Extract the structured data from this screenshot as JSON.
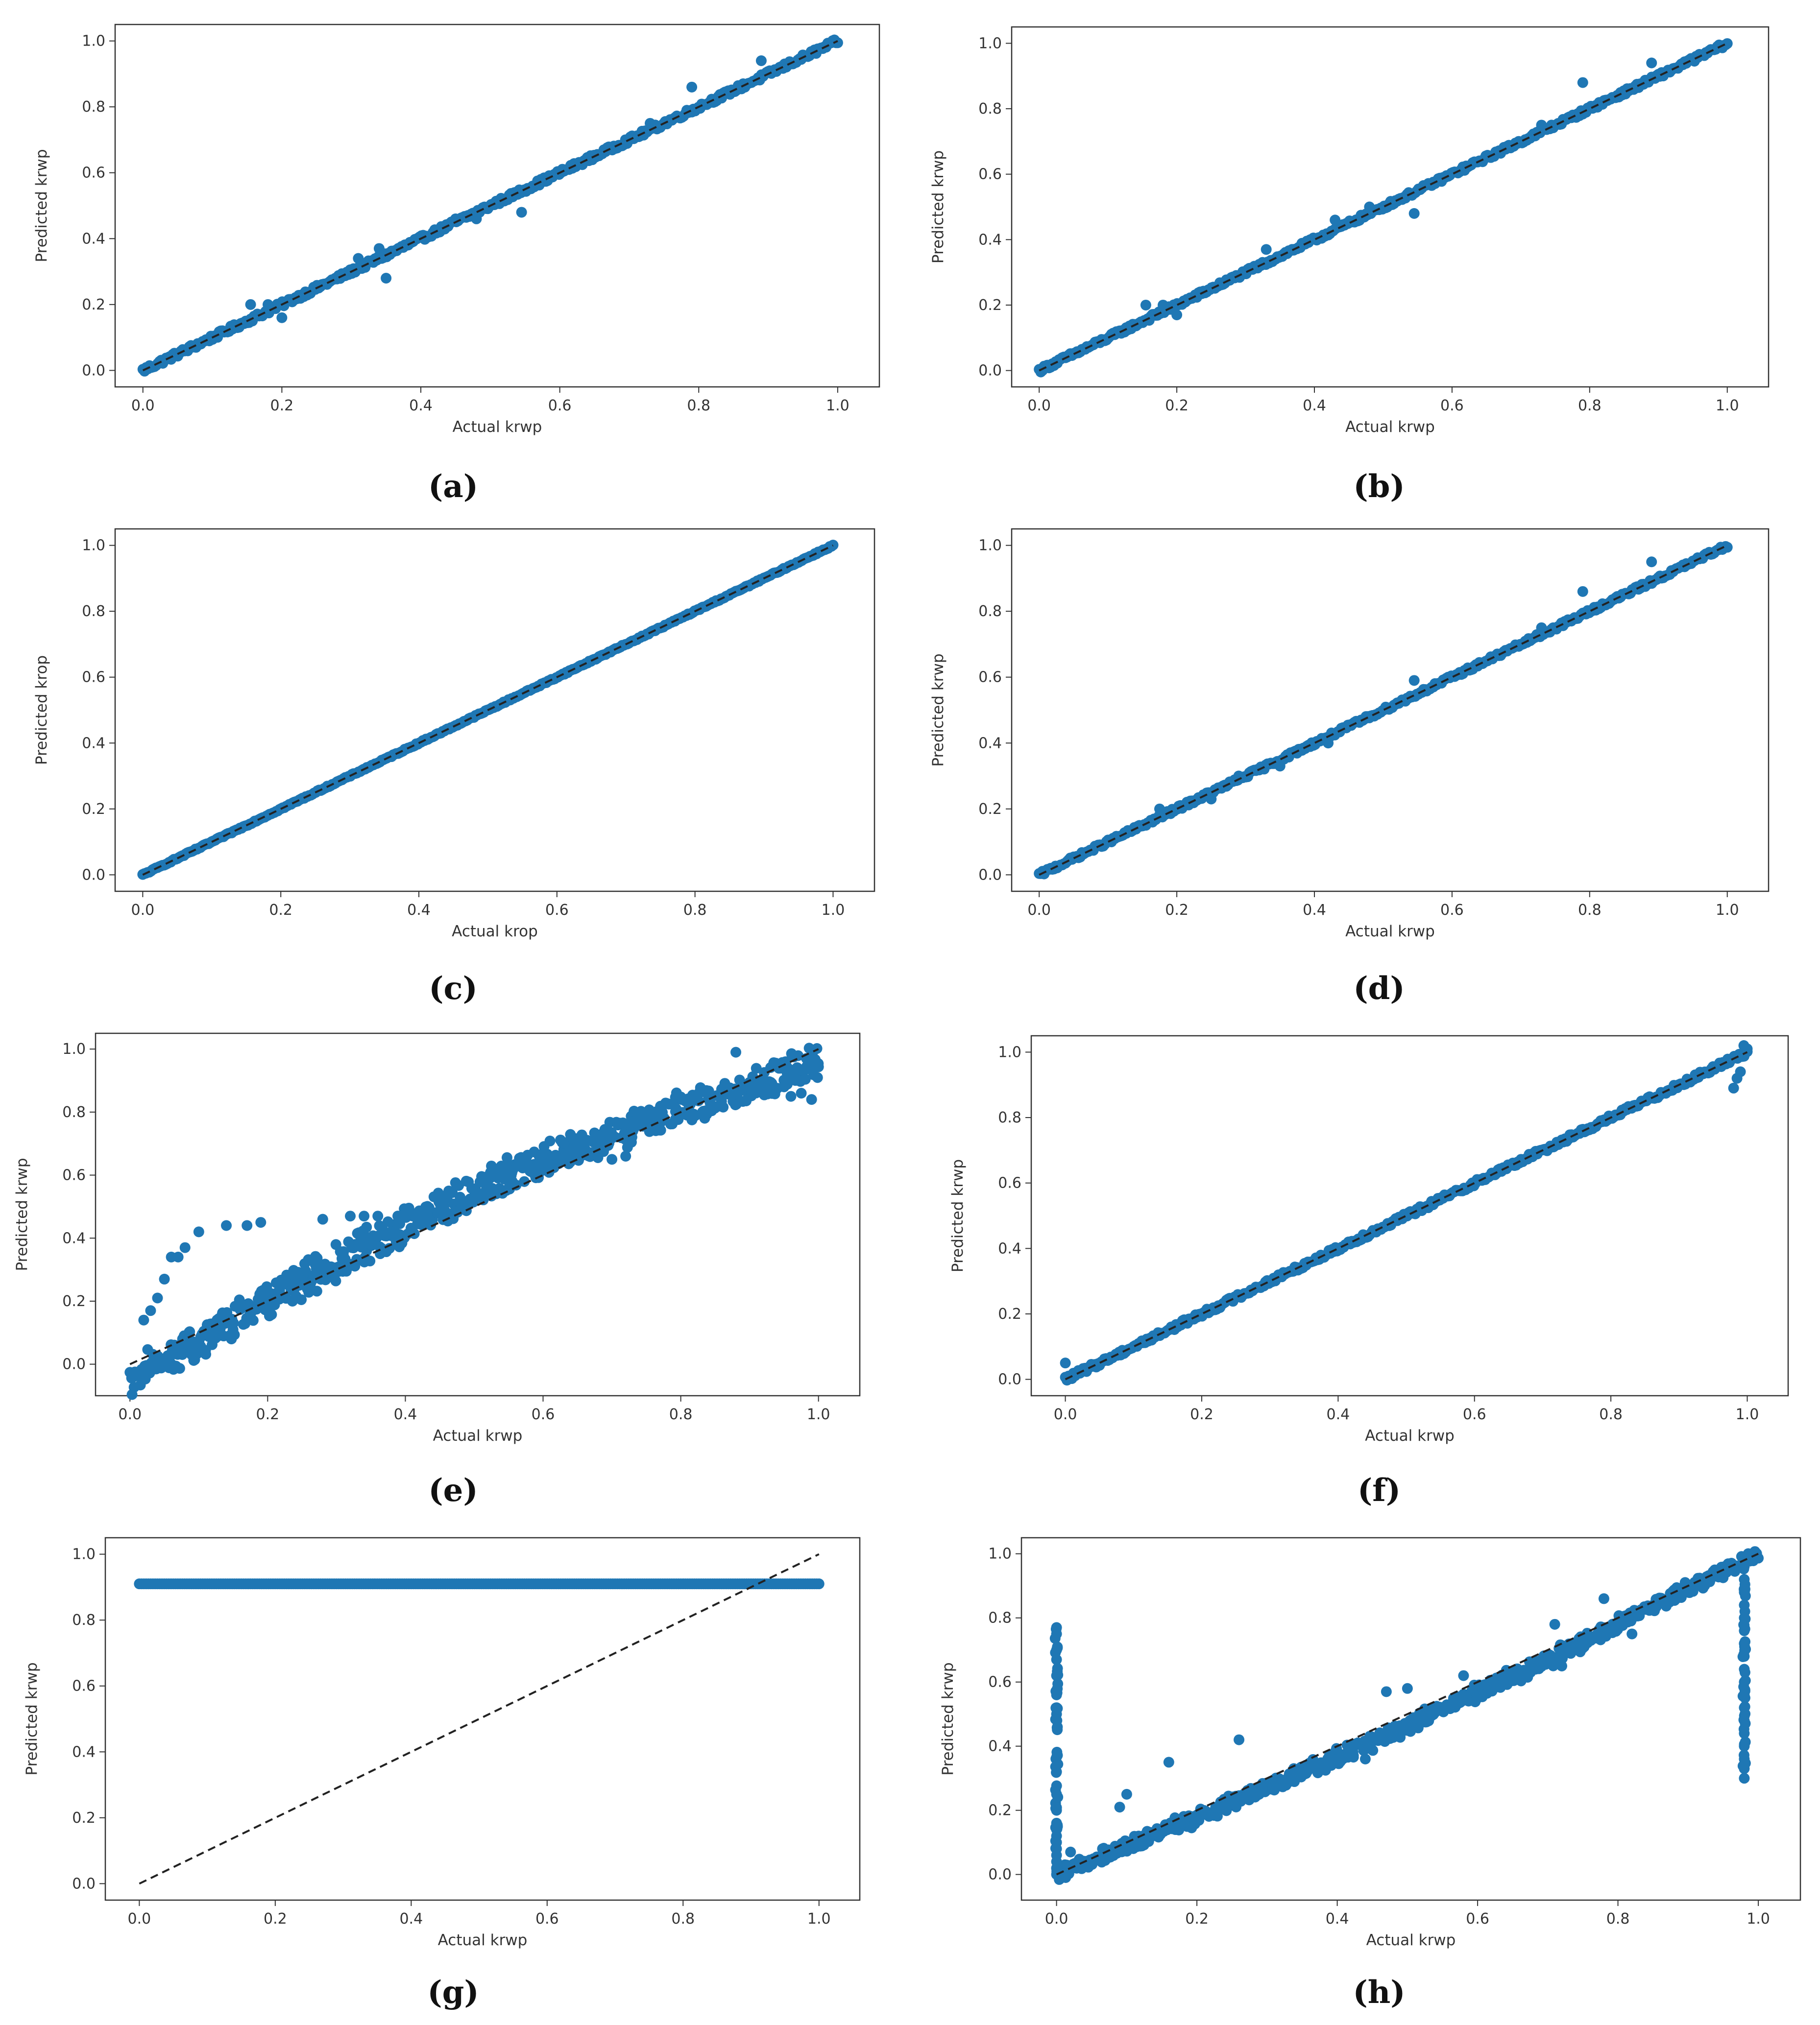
{
  "colors": {
    "marker": "#1f77b4",
    "diagonal": "#222222",
    "frame": "#333333"
  },
  "chart_data": [
    {
      "panel": "(a)",
      "type": "scatter",
      "xlabel": "Actual krwp",
      "ylabel": "Predicted krwp",
      "xlim": [
        -0.04,
        1.06
      ],
      "ylim": [
        -0.05,
        1.05
      ],
      "xticks": [
        "0.0",
        "0.2",
        "0.4",
        "0.6",
        "0.8",
        "1.0"
      ],
      "yticks": [
        "0.0",
        "0.2",
        "0.4",
        "0.6",
        "0.8",
        "1.0"
      ],
      "reference_line": [
        [
          0,
          0
        ],
        [
          1,
          1
        ]
      ],
      "trend": {
        "noise": 0.008
      },
      "outliers": [
        [
          0.79,
          0.86
        ],
        [
          0.89,
          0.94
        ],
        [
          0.545,
          0.48
        ],
        [
          0.155,
          0.2
        ],
        [
          0.18,
          0.2
        ],
        [
          0.2,
          0.16
        ],
        [
          0.31,
          0.34
        ],
        [
          0.34,
          0.37
        ],
        [
          0.35,
          0.28
        ],
        [
          0.45,
          0.46
        ],
        [
          0.48,
          0.46
        ],
        [
          0.5,
          0.5
        ],
        [
          0.73,
          0.75
        ]
      ]
    },
    {
      "panel": "(b)",
      "type": "scatter",
      "xlabel": "Actual krwp",
      "ylabel": "Predicted krwp",
      "xlim": [
        -0.04,
        1.06
      ],
      "ylim": [
        -0.05,
        1.05
      ],
      "xticks": [
        "0.0",
        "0.2",
        "0.4",
        "0.6",
        "0.8",
        "1.0"
      ],
      "yticks": [
        "0.0",
        "0.2",
        "0.4",
        "0.6",
        "0.8",
        "1.0"
      ],
      "reference_line": [
        [
          0,
          0
        ],
        [
          1,
          1
        ]
      ],
      "trend": {
        "noise": 0.007
      },
      "outliers": [
        [
          0.79,
          0.88
        ],
        [
          0.89,
          0.94
        ],
        [
          0.545,
          0.48
        ],
        [
          0.155,
          0.2
        ],
        [
          0.18,
          0.2
        ],
        [
          0.2,
          0.17
        ],
        [
          0.33,
          0.37
        ],
        [
          0.43,
          0.46
        ],
        [
          0.48,
          0.5
        ],
        [
          0.73,
          0.75
        ]
      ]
    },
    {
      "panel": "(c)",
      "type": "scatter",
      "xlabel": "Actual krop",
      "ylabel": "Predicted krop",
      "xlim": [
        -0.04,
        1.06
      ],
      "ylim": [
        -0.05,
        1.05
      ],
      "xticks": [
        "0.0",
        "0.2",
        "0.4",
        "0.6",
        "0.8",
        "1.0"
      ],
      "yticks": [
        "0.0",
        "0.2",
        "0.4",
        "0.6",
        "0.8",
        "1.0"
      ],
      "reference_line": [
        [
          0,
          0
        ],
        [
          1,
          1
        ]
      ],
      "trend": {
        "noise": 0.002
      },
      "outliers": []
    },
    {
      "panel": "(d)",
      "type": "scatter",
      "xlabel": "Actual krwp",
      "ylabel": "Predicted krwp",
      "xlim": [
        -0.04,
        1.06
      ],
      "ylim": [
        -0.05,
        1.05
      ],
      "xticks": [
        "0.0",
        "0.2",
        "0.4",
        "0.6",
        "0.8",
        "1.0"
      ],
      "yticks": [
        "0.0",
        "0.2",
        "0.4",
        "0.6",
        "0.8",
        "1.0"
      ],
      "reference_line": [
        [
          0,
          0
        ],
        [
          1,
          1
        ]
      ],
      "trend": {
        "noise": 0.006
      },
      "outliers": [
        [
          0.79,
          0.86
        ],
        [
          0.89,
          0.95
        ],
        [
          0.545,
          0.59
        ],
        [
          0.175,
          0.2
        ],
        [
          0.25,
          0.23
        ],
        [
          0.29,
          0.3
        ],
        [
          0.35,
          0.33
        ],
        [
          0.42,
          0.4
        ],
        [
          0.73,
          0.75
        ]
      ]
    },
    {
      "panel": "(e)",
      "type": "scatter",
      "xlabel": "Actual krwp",
      "ylabel": "Predicted krwp",
      "xlim": [
        -0.05,
        1.06
      ],
      "ylim": [
        -0.1,
        1.05
      ],
      "xticks": [
        "0.0",
        "0.2",
        "0.4",
        "0.6",
        "0.8",
        "1.0"
      ],
      "yticks": [
        "0.0",
        "0.2",
        "0.4",
        "0.6",
        "0.8",
        "1.0"
      ],
      "reference_line": [
        [
          0,
          0
        ],
        [
          1,
          1
        ]
      ],
      "trend": {
        "noise": 0.045
      },
      "outliers": [
        [
          0.02,
          0.14
        ],
        [
          0.03,
          0.17
        ],
        [
          0.04,
          0.21
        ],
        [
          0.05,
          0.27
        ],
        [
          0.06,
          0.34
        ],
        [
          0.07,
          0.34
        ],
        [
          0.08,
          0.37
        ],
        [
          0.1,
          0.42
        ],
        [
          0.14,
          0.44
        ],
        [
          0.17,
          0.44
        ],
        [
          0.19,
          0.45
        ],
        [
          0.28,
          0.46
        ],
        [
          0.32,
          0.47
        ],
        [
          0.34,
          0.47
        ],
        [
          0.36,
          0.47
        ],
        [
          0.88,
          0.99
        ],
        [
          0.96,
          0.85
        ],
        [
          0.99,
          0.84
        ],
        [
          0.975,
          0.86
        ],
        [
          0.95,
          0.88
        ],
        [
          0.72,
          0.66
        ],
        [
          0.7,
          0.65
        ]
      ]
    },
    {
      "panel": "(f)",
      "type": "scatter",
      "xlabel": "Actual krwp",
      "ylabel": "Predicted krwp",
      "xlim": [
        -0.05,
        1.06
      ],
      "ylim": [
        -0.05,
        1.05
      ],
      "xticks": [
        "0.0",
        "0.2",
        "0.4",
        "0.6",
        "0.8",
        "1.0"
      ],
      "yticks": [
        "0.0",
        "0.2",
        "0.4",
        "0.6",
        "0.8",
        "1.0"
      ],
      "reference_line": [
        [
          0,
          0
        ],
        [
          1,
          1
        ]
      ],
      "trend": {
        "noise": 0.008
      },
      "outliers": [
        [
          0.0,
          0.05
        ],
        [
          0.98,
          0.89
        ],
        [
          0.985,
          0.92
        ],
        [
          0.99,
          0.94
        ],
        [
          0.995,
          1.02
        ],
        [
          1.0,
          1.01
        ]
      ]
    },
    {
      "panel": "(g)",
      "type": "scatter",
      "xlabel": "Actual krwp",
      "ylabel": "Predicted krwp",
      "xlim": [
        -0.05,
        1.06
      ],
      "ylim": [
        -0.05,
        1.05
      ],
      "xticks": [
        "0.0",
        "0.2",
        "0.4",
        "0.6",
        "0.8",
        "1.0"
      ],
      "yticks": [
        "0.0",
        "0.2",
        "0.4",
        "0.6",
        "0.8",
        "1.0"
      ],
      "reference_line": [
        [
          0,
          0
        ],
        [
          1,
          1
        ]
      ],
      "constant_prediction": {
        "value": 0.91,
        "x_range": [
          0.0,
          1.0
        ]
      },
      "outliers": []
    },
    {
      "panel": "(h)",
      "type": "scatter",
      "xlabel": "Actual krwp",
      "ylabel": "Predicted krwp",
      "xlim": [
        -0.05,
        1.06
      ],
      "ylim": [
        -0.08,
        1.05
      ],
      "xticks": [
        "0.0",
        "0.2",
        "0.4",
        "0.6",
        "0.8",
        "1.0"
      ],
      "yticks": [
        "0.0",
        "0.2",
        "0.4",
        "0.6",
        "0.8",
        "1.0"
      ],
      "reference_line": [
        [
          0,
          0
        ],
        [
          1,
          1
        ]
      ],
      "trend": {
        "noise": 0.02
      },
      "vertical_clusters": [
        {
          "x": 0.0,
          "y_values": [
            0.0,
            0.02,
            0.04,
            0.06,
            0.08,
            0.1,
            0.12,
            0.14,
            0.16,
            0.2,
            0.25,
            0.32,
            0.5,
            0.52,
            0.56,
            0.62,
            0.67,
            0.7,
            0.75,
            0.77
          ]
        },
        {
          "x": 0.98,
          "y_values": [
            0.3,
            0.33,
            0.36,
            0.4,
            0.44,
            0.48,
            0.52,
            0.56,
            0.6,
            0.64,
            0.68,
            0.72,
            0.76,
            0.8,
            0.84,
            0.88,
            0.92,
            0.96,
            0.98
          ]
        }
      ],
      "outliers": [
        [
          0.16,
          0.35
        ],
        [
          0.26,
          0.42
        ],
        [
          0.1,
          0.25
        ],
        [
          0.09,
          0.21
        ],
        [
          0.47,
          0.57
        ],
        [
          0.5,
          0.58
        ],
        [
          0.58,
          0.62
        ],
        [
          0.71,
          0.78
        ],
        [
          0.78,
          0.86
        ],
        [
          0.44,
          0.36
        ],
        [
          0.6,
          0.55
        ],
        [
          0.72,
          0.65
        ],
        [
          0.82,
          0.75
        ],
        [
          0.02,
          0.07
        ]
      ]
    }
  ]
}
